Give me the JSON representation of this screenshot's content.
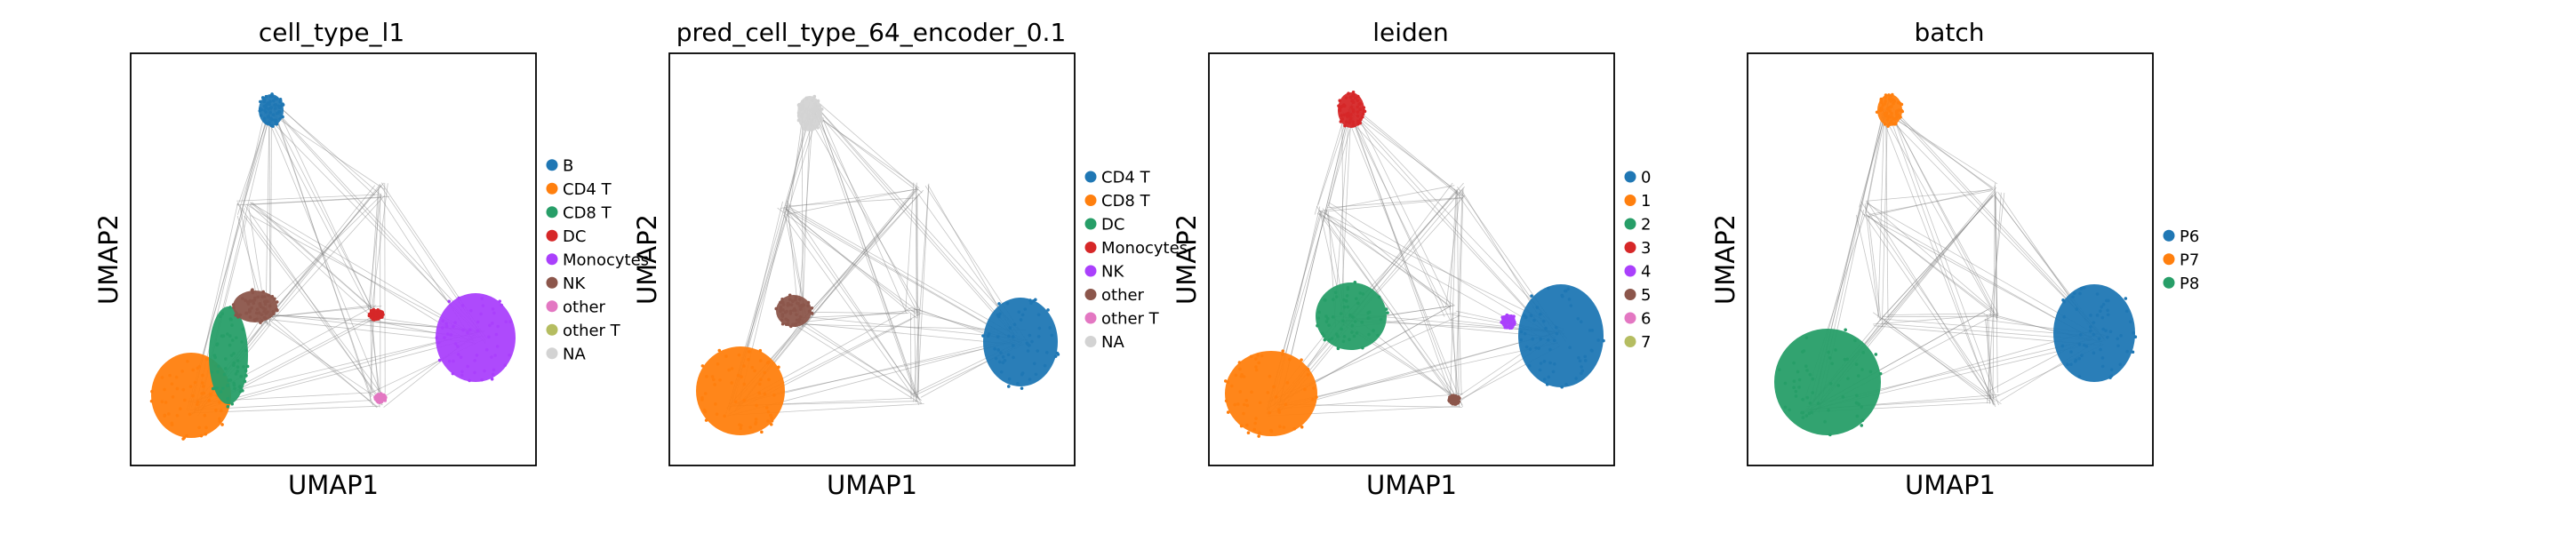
{
  "chart_data": [
    {
      "type": "scatter",
      "title": "cell_type_l1",
      "xlabel": "UMAP1",
      "ylabel": "UMAP2",
      "grid": false,
      "legend_placement": "right",
      "legend": [
        {
          "name": "B",
          "color": "#1f77b4"
        },
        {
          "name": "CD4 T",
          "color": "#ff7f0e"
        },
        {
          "name": "CD8 T",
          "color": "#279e68"
        },
        {
          "name": "DC",
          "color": "#d62728"
        },
        {
          "name": "Monocytes",
          "color": "#aa40fc"
        },
        {
          "name": "NK",
          "color": "#8c564b"
        },
        {
          "name": "other",
          "color": "#e377c2"
        },
        {
          "name": "other T",
          "color": "#b5bd61"
        },
        {
          "name": "NA",
          "color": "#d3d3d3"
        }
      ],
      "clusters": [
        {
          "label": "B",
          "color": "#1f77b4"
        },
        {
          "label": "CD4 T",
          "color": "#ff7f0e"
        },
        {
          "label": "CD8 T",
          "color": "#279e68"
        },
        {
          "label": "NK",
          "color": "#8c564b"
        },
        {
          "label": "Monocytes",
          "color": "#aa40fc"
        },
        {
          "label": "DC",
          "color": "#d62728"
        },
        {
          "label": "other",
          "color": "#e377c2"
        }
      ]
    },
    {
      "type": "scatter",
      "title": "pred_cell_type_64_encoder_0.1",
      "xlabel": "UMAP1",
      "ylabel": "UMAP2",
      "grid": false,
      "legend_placement": "right",
      "legend": [
        {
          "name": "CD4 T",
          "color": "#1f77b4"
        },
        {
          "name": "CD8 T",
          "color": "#ff7f0e"
        },
        {
          "name": "DC",
          "color": "#279e68"
        },
        {
          "name": "Monocytes",
          "color": "#d62728"
        },
        {
          "name": "NK",
          "color": "#aa40fc"
        },
        {
          "name": "other",
          "color": "#8c564b"
        },
        {
          "name": "other T",
          "color": "#e377c2"
        },
        {
          "name": "NA",
          "color": "#d3d3d3"
        }
      ],
      "clusters": [
        {
          "label": "NA",
          "color": "#d3d3d3"
        },
        {
          "label": "CD4 T",
          "color": "#1f77b4"
        },
        {
          "label": "CD8 T",
          "color": "#ff7f0e"
        },
        {
          "label": "other",
          "color": "#8c564b"
        }
      ]
    },
    {
      "type": "scatter",
      "title": "leiden",
      "xlabel": "UMAP1",
      "ylabel": "UMAP2",
      "grid": false,
      "legend_placement": "right",
      "legend": [
        {
          "name": "0",
          "color": "#1f77b4"
        },
        {
          "name": "1",
          "color": "#ff7f0e"
        },
        {
          "name": "2",
          "color": "#279e68"
        },
        {
          "name": "3",
          "color": "#d62728"
        },
        {
          "name": "4",
          "color": "#aa40fc"
        },
        {
          "name": "5",
          "color": "#8c564b"
        },
        {
          "name": "6",
          "color": "#e377c2"
        },
        {
          "name": "7",
          "color": "#b5bd61"
        }
      ],
      "clusters": [
        {
          "label": "3",
          "color": "#d62728"
        },
        {
          "label": "2",
          "color": "#279e68"
        },
        {
          "label": "1",
          "color": "#ff7f0e"
        },
        {
          "label": "0",
          "color": "#1f77b4"
        },
        {
          "label": "4",
          "color": "#aa40fc"
        },
        {
          "label": "5",
          "color": "#8c564b"
        }
      ]
    },
    {
      "type": "scatter",
      "title": "batch",
      "xlabel": "UMAP1",
      "ylabel": "UMAP2",
      "grid": false,
      "legend_placement": "right",
      "legend": [
        {
          "name": "P6",
          "color": "#1f77b4"
        },
        {
          "name": "P7",
          "color": "#ff7f0e"
        },
        {
          "name": "P8",
          "color": "#279e68"
        }
      ],
      "clusters": [
        {
          "label": "P7",
          "color": "#ff7f0e"
        },
        {
          "label": "P6",
          "color": "#1f77b4"
        },
        {
          "label": "P8",
          "color": "#279e68"
        }
      ]
    }
  ]
}
